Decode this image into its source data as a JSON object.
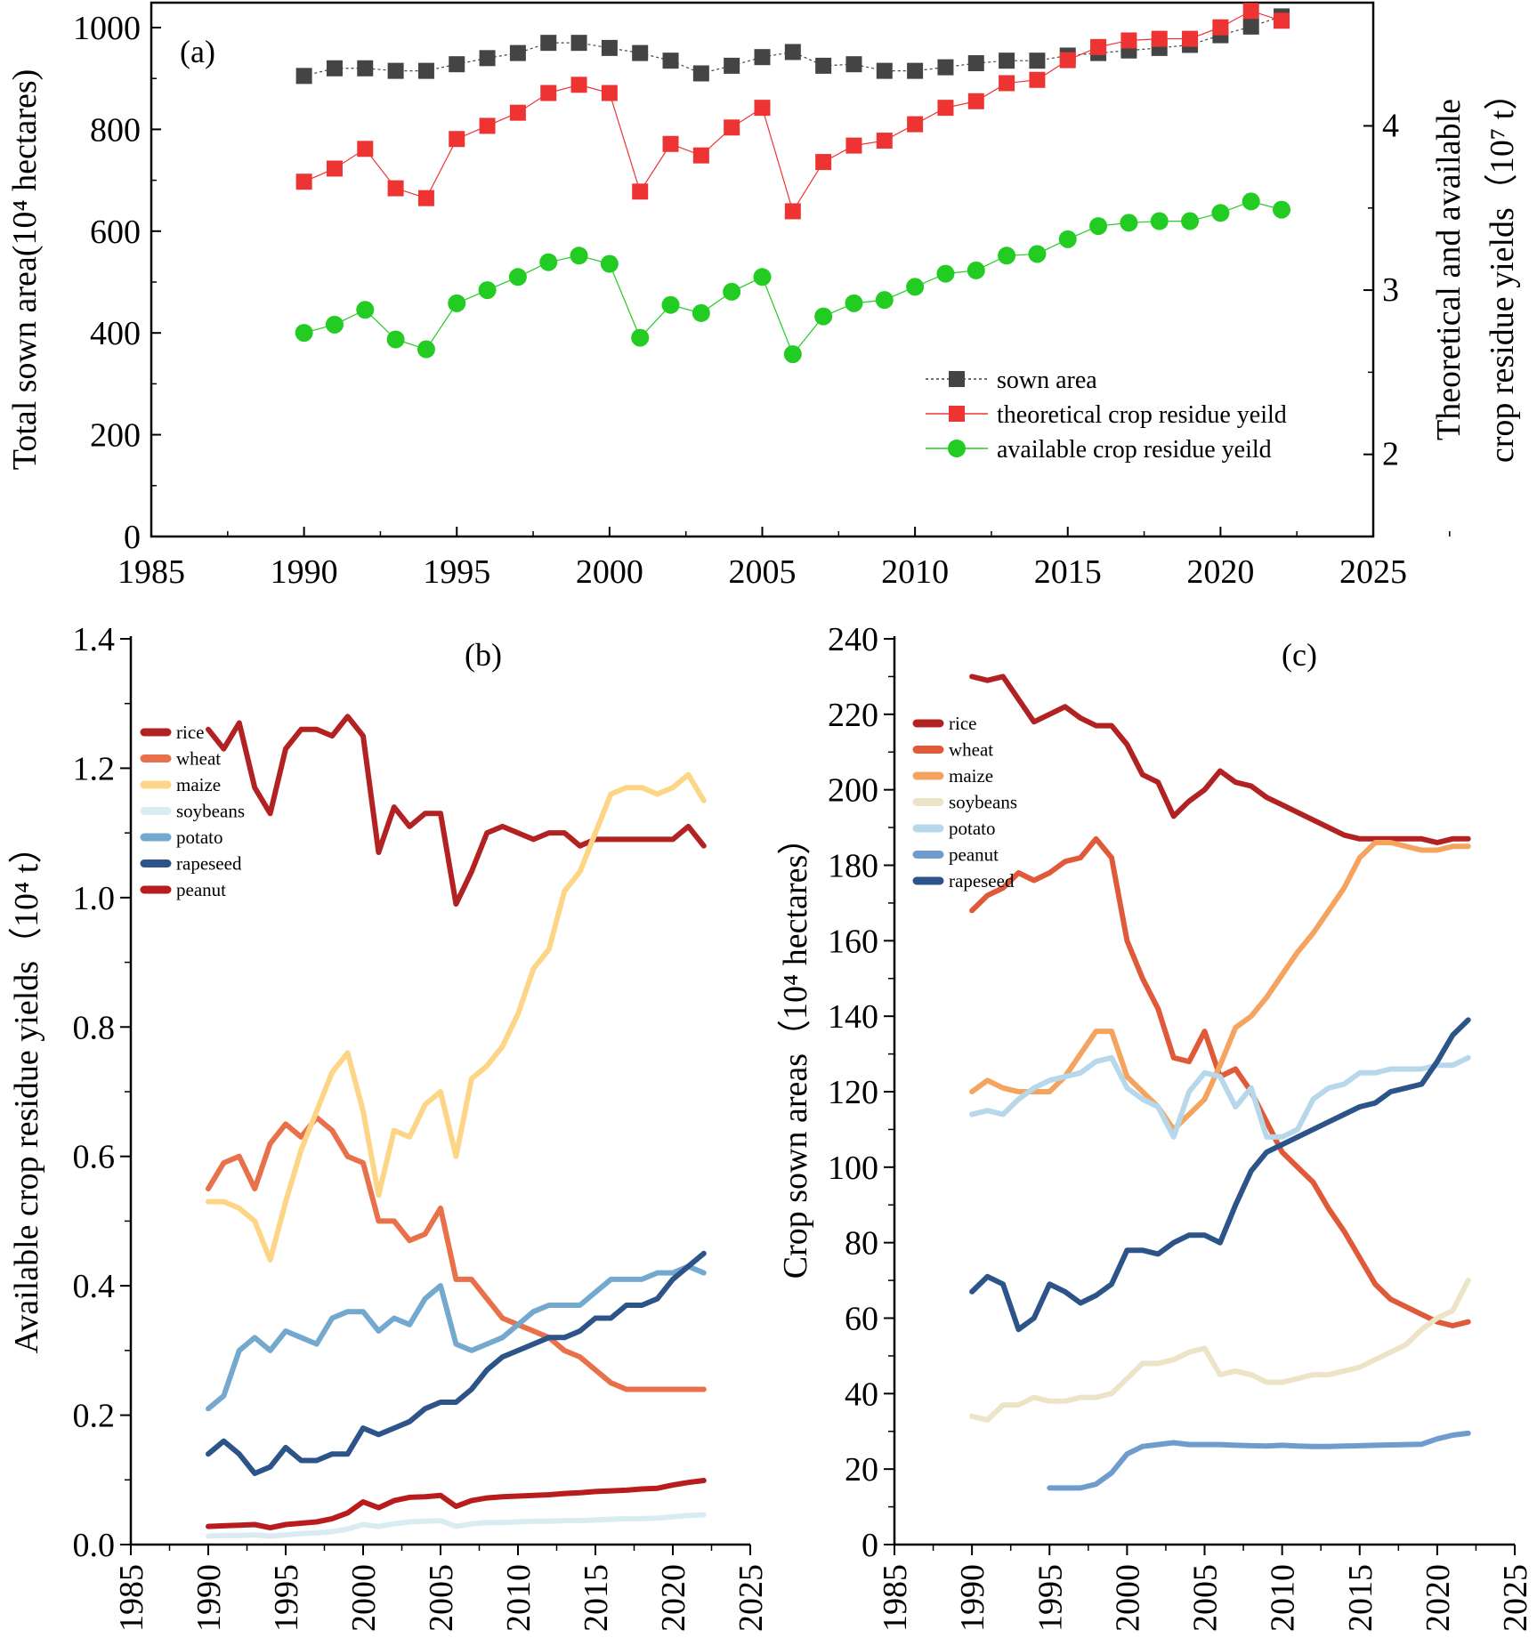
{
  "chart_data": [
    {
      "panel": "(a)",
      "type": "line",
      "x": [
        1990,
        1991,
        1992,
        1993,
        1994,
        1995,
        1996,
        1997,
        1998,
        1999,
        2000,
        2001,
        2002,
        2003,
        2004,
        2005,
        2006,
        2007,
        2008,
        2009,
        2010,
        2011,
        2012,
        2013,
        2014,
        2015,
        2016,
        2017,
        2018,
        2019,
        2020,
        2021,
        2022
      ],
      "xlim": [
        1985,
        2025
      ],
      "xticks": [
        1985,
        1990,
        1995,
        2000,
        2005,
        2010,
        2015,
        2020,
        2025
      ],
      "ylabel": "Total sown area(10⁴ hectares)",
      "ylim": [
        0,
        1000
      ],
      "yticks": [
        0,
        200,
        400,
        600,
        800,
        1000
      ],
      "y2label_line1": "Theoretical and available",
      "y2label_line2": "crop residue yields（10⁷ t）",
      "y2lim": [
        1.5,
        4.75
      ],
      "y2ticks": [
        2,
        3,
        4
      ],
      "series": [
        {
          "name": "sown area",
          "axis": "left",
          "marker": "square",
          "color": "#444444",
          "values": [
            905,
            920,
            920,
            915,
            915,
            928,
            940,
            950,
            970,
            970,
            960,
            950,
            935,
            910,
            925,
            942,
            952,
            925,
            928,
            915,
            915,
            922,
            930,
            935,
            935,
            945,
            950,
            955,
            960,
            966,
            985,
            1002,
            1022
          ]
        },
        {
          "name": "theoretical crop residue yeild",
          "axis": "right",
          "marker": "square",
          "color": "#ee3333",
          "values": [
            3.66,
            3.74,
            3.86,
            3.62,
            3.56,
            3.92,
            4.0,
            4.08,
            4.2,
            4.25,
            4.2,
            3.6,
            3.89,
            3.82,
            3.99,
            4.11,
            3.48,
            3.78,
            3.88,
            3.91,
            4.01,
            4.11,
            4.15,
            4.26,
            4.28,
            4.4,
            4.48,
            4.52,
            4.53,
            4.53,
            4.6,
            4.7,
            4.64
          ]
        },
        {
          "name": "available crop residue yeild",
          "axis": "right",
          "marker": "circle",
          "color": "#22cc22",
          "values": [
            2.74,
            2.79,
            2.88,
            2.7,
            2.64,
            2.92,
            3.0,
            3.08,
            3.17,
            3.21,
            3.16,
            2.71,
            2.91,
            2.86,
            2.99,
            3.08,
            2.61,
            2.84,
            2.92,
            2.94,
            3.02,
            3.1,
            3.12,
            3.21,
            3.22,
            3.31,
            3.39,
            3.41,
            3.42,
            3.42,
            3.47,
            3.54,
            3.49
          ]
        }
      ],
      "legend_position": "center-right"
    },
    {
      "panel": "(b)",
      "type": "line",
      "xlim": [
        1985,
        2025
      ],
      "xticks": [
        1985,
        1990,
        1995,
        2000,
        2005,
        2010,
        2015,
        2020,
        2025
      ],
      "ylabel": "Available crop residue yields（10⁴ t）",
      "ylim": [
        0,
        1.4
      ],
      "yticks": [
        "0.0",
        "0.2",
        "0.4",
        "0.6",
        "0.8",
        "1.0",
        "1.2",
        "1.4"
      ],
      "x": [
        1990,
        1991,
        1992,
        1993,
        1994,
        1995,
        1996,
        1997,
        1998,
        1999,
        2000,
        2001,
        2002,
        2003,
        2004,
        2005,
        2006,
        2007,
        2008,
        2009,
        2010,
        2011,
        2012,
        2013,
        2014,
        2015,
        2016,
        2017,
        2018,
        2019,
        2020,
        2021,
        2022
      ],
      "series": [
        {
          "name": "rice",
          "color": "#b22222",
          "values": [
            1.26,
            1.23,
            1.27,
            1.17,
            1.13,
            1.23,
            1.26,
            1.26,
            1.25,
            1.28,
            1.25,
            1.07,
            1.14,
            1.11,
            1.13,
            1.13,
            0.99,
            1.04,
            1.1,
            1.11,
            1.1,
            1.09,
            1.1,
            1.1,
            1.08,
            1.09,
            1.09,
            1.09,
            1.09,
            1.09,
            1.09,
            1.11,
            1.08
          ]
        },
        {
          "name": "wheat",
          "color": "#e8704a",
          "values": [
            0.55,
            0.59,
            0.6,
            0.55,
            0.62,
            0.65,
            0.63,
            0.66,
            0.64,
            0.6,
            0.59,
            0.5,
            0.5,
            0.47,
            0.48,
            0.52,
            0.41,
            0.41,
            0.38,
            0.35,
            0.34,
            0.33,
            0.32,
            0.3,
            0.29,
            0.27,
            0.25,
            0.24,
            0.24,
            0.24,
            0.24,
            0.24,
            0.24
          ]
        },
        {
          "name": "maize",
          "color": "#fdd587",
          "values": [
            0.53,
            0.53,
            0.52,
            0.5,
            0.44,
            0.53,
            0.61,
            0.67,
            0.73,
            0.76,
            0.67,
            0.54,
            0.64,
            0.63,
            0.68,
            0.7,
            0.6,
            0.72,
            0.74,
            0.77,
            0.82,
            0.89,
            0.92,
            1.01,
            1.04,
            1.1,
            1.16,
            1.17,
            1.17,
            1.16,
            1.17,
            1.19,
            1.15
          ]
        },
        {
          "name": "soybeans",
          "color": "#d9ecf2",
          "values": [
            0.013,
            0.014,
            0.014,
            0.015,
            0.013,
            0.015,
            0.017,
            0.018,
            0.02,
            0.024,
            0.031,
            0.028,
            0.032,
            0.035,
            0.036,
            0.037,
            0.028,
            0.032,
            0.034,
            0.034,
            0.035,
            0.036,
            0.036,
            0.037,
            0.037,
            0.038,
            0.039,
            0.04,
            0.04,
            0.041,
            0.043,
            0.045,
            0.046
          ]
        },
        {
          "name": "potato",
          "color": "#74a9cf",
          "values": [
            0.21,
            0.23,
            0.3,
            0.32,
            0.3,
            0.33,
            0.32,
            0.31,
            0.35,
            0.36,
            0.36,
            0.33,
            0.35,
            0.34,
            0.38,
            0.4,
            0.31,
            0.3,
            0.31,
            0.32,
            0.34,
            0.36,
            0.37,
            0.37,
            0.37,
            0.39,
            0.41,
            0.41,
            0.41,
            0.42,
            0.42,
            0.43,
            0.42
          ]
        },
        {
          "name": "rapeseed",
          "color": "#2c5489",
          "values": [
            0.14,
            0.16,
            0.14,
            0.11,
            0.12,
            0.15,
            0.13,
            0.13,
            0.14,
            0.14,
            0.18,
            0.17,
            0.18,
            0.19,
            0.21,
            0.22,
            0.22,
            0.24,
            0.27,
            0.29,
            0.3,
            0.31,
            0.32,
            0.32,
            0.33,
            0.35,
            0.35,
            0.37,
            0.37,
            0.38,
            0.41,
            0.43,
            0.45
          ]
        },
        {
          "name": "peanut",
          "color": "#b81c1c",
          "values": [
            0.028,
            0.029,
            0.03,
            0.031,
            0.026,
            0.031,
            0.033,
            0.035,
            0.04,
            0.049,
            0.066,
            0.057,
            0.068,
            0.073,
            0.074,
            0.076,
            0.059,
            0.068,
            0.072,
            0.074,
            0.075,
            0.076,
            0.077,
            0.079,
            0.08,
            0.082,
            0.083,
            0.084,
            0.086,
            0.087,
            0.092,
            0.096,
            0.099
          ]
        }
      ],
      "legend_position": "top-left"
    },
    {
      "panel": "(c)",
      "type": "line",
      "xlim": [
        1985,
        2025
      ],
      "xticks": [
        1985,
        1990,
        1995,
        2000,
        2005,
        2010,
        2015,
        2020,
        2025
      ],
      "ylabel": "Crop sown areas（10⁴ hectares）",
      "ylim": [
        0,
        240
      ],
      "yticks": [
        0,
        20,
        40,
        60,
        80,
        100,
        120,
        140,
        160,
        180,
        200,
        220,
        240
      ],
      "x": [
        1990,
        1991,
        1992,
        1993,
        1994,
        1995,
        1996,
        1997,
        1998,
        1999,
        2000,
        2001,
        2002,
        2003,
        2004,
        2005,
        2006,
        2007,
        2008,
        2009,
        2010,
        2011,
        2012,
        2013,
        2014,
        2015,
        2016,
        2017,
        2018,
        2019,
        2020,
        2021,
        2022
      ],
      "series": [
        {
          "name": "rice",
          "color": "#b22222",
          "values": [
            230,
            229,
            230,
            224,
            218,
            220,
            222,
            219,
            217,
            217,
            212,
            204,
            202,
            193,
            197,
            200,
            205,
            202,
            201,
            198,
            196,
            194,
            192,
            190,
            188,
            187,
            187,
            187,
            187,
            187,
            186,
            187,
            187
          ]
        },
        {
          "name": "wheat",
          "color": "#e05a3a",
          "values": [
            168,
            172,
            174,
            178,
            176,
            178,
            181,
            182,
            187,
            182,
            160,
            150,
            142,
            129,
            128,
            136,
            124,
            126,
            120,
            112,
            104,
            100,
            96,
            89,
            83,
            76,
            69,
            65,
            63,
            61,
            59,
            58,
            59
          ]
        },
        {
          "name": "maize",
          "color": "#f5a460",
          "values": [
            120,
            123,
            121,
            120,
            120,
            120,
            124,
            130,
            136,
            136,
            124,
            120,
            116,
            110,
            114,
            118,
            127,
            137,
            140,
            145,
            151,
            157,
            162,
            168,
            174,
            182,
            186,
            186,
            185,
            184,
            184,
            185,
            185
          ]
        },
        {
          "name": "soybeans",
          "color": "#ede4c8",
          "values": [
            34,
            33,
            37,
            37,
            39,
            38,
            38,
            39,
            39,
            40,
            44,
            48,
            48,
            49,
            51,
            52,
            45,
            46,
            45,
            43,
            43,
            44,
            45,
            45,
            46,
            47,
            49,
            51,
            53,
            57,
            60,
            62,
            70
          ]
        },
        {
          "name": "potato",
          "color": "#b7d8ea",
          "values": [
            114,
            115,
            114,
            118,
            121,
            123,
            124,
            125,
            128,
            129,
            121,
            118,
            116,
            108,
            120,
            125,
            124,
            116,
            121,
            108,
            108,
            110,
            118,
            121,
            122,
            125,
            125,
            126,
            126,
            126,
            127,
            127,
            129
          ]
        },
        {
          "name": "peanut",
          "color": "#6f9ccc",
          "values": [
            null,
            null,
            null,
            null,
            null,
            15,
            15,
            15,
            16,
            19,
            24,
            26,
            26.5,
            27,
            26.5,
            26.5,
            26.5,
            26.3,
            26.2,
            26.1,
            26.3,
            26.1,
            26,
            26,
            26.1,
            26.2,
            26.3,
            26.4,
            26.5,
            26.6,
            28,
            29,
            29.5
          ]
        },
        {
          "name": "rapeseed",
          "color": "#2c5489",
          "values": [
            67,
            71,
            69,
            57,
            60,
            69,
            67,
            64,
            66,
            69,
            78,
            78,
            77,
            80,
            82,
            82,
            80,
            90,
            99,
            104,
            106,
            108,
            110,
            112,
            114,
            116,
            117,
            120,
            121,
            122,
            128,
            135,
            139
          ]
        }
      ],
      "legend_position": "top-left"
    }
  ]
}
